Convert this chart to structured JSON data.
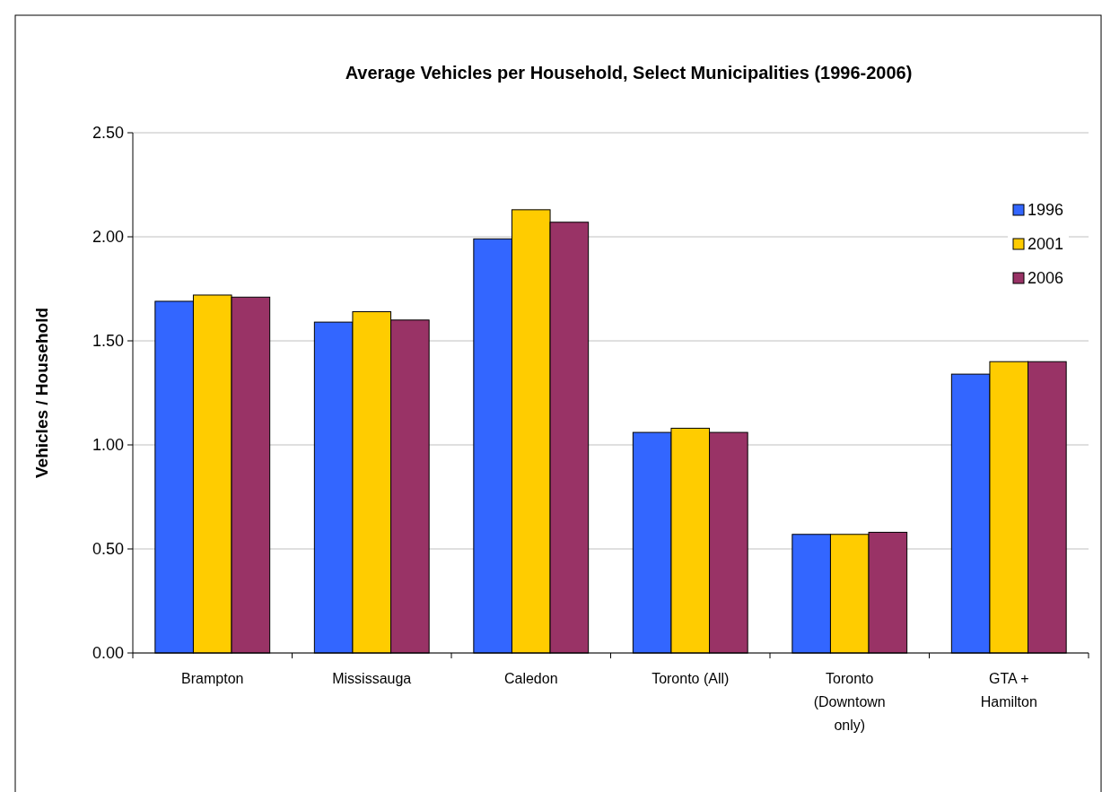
{
  "chart_data": {
    "type": "bar",
    "title": "Average Vehicles per Household, Select Municipalities (1996-2006)",
    "ylabel": "Vehicles / Household",
    "categories": [
      "Brampton",
      "Mississauga",
      "Caledon",
      "Toronto (All)",
      "Toronto (Downtown only)",
      "GTA + Hamilton"
    ],
    "series": [
      {
        "name": "1996",
        "color": "#3366ff",
        "values": [
          1.69,
          1.59,
          1.99,
          1.06,
          0.57,
          1.34
        ]
      },
      {
        "name": "2001",
        "color": "#ffcc00",
        "values": [
          1.72,
          1.64,
          2.13,
          1.08,
          0.57,
          1.4
        ]
      },
      {
        "name": "2006",
        "color": "#993366",
        "values": [
          1.71,
          1.6,
          2.07,
          1.06,
          0.58,
          1.4
        ]
      }
    ],
    "ylim": [
      0,
      2.5
    ],
    "yticks": [
      {
        "value": 0,
        "label": "0.00"
      },
      {
        "value": 0.5,
        "label": "0.50"
      },
      {
        "value": 1,
        "label": "1.00"
      },
      {
        "value": 1.5,
        "label": "1.50"
      },
      {
        "value": 2,
        "label": "2.00"
      },
      {
        "value": 2.5,
        "label": "2.50"
      }
    ],
    "grid": "y",
    "legend": "top right"
  }
}
